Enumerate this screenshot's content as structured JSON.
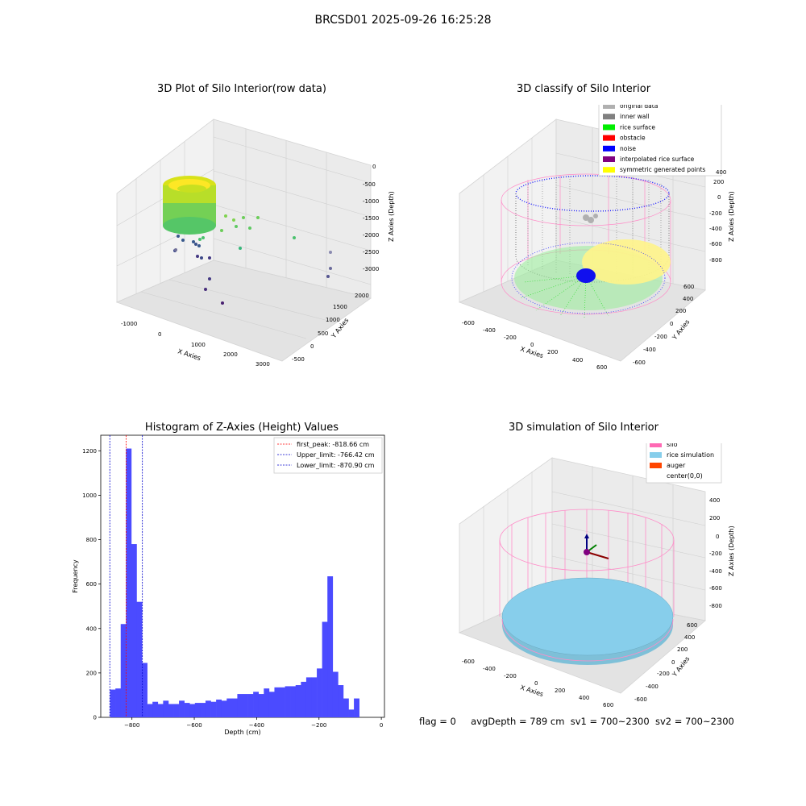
{
  "figure": {
    "suptitle": "BRCSD01 2025-09-26 16:25:28",
    "footer": {
      "flag": "flag = 0",
      "avg_depth": "avgDepth = 789 cm",
      "sv1": "sv1 = 700~2300",
      "sv2": "sv2 = 700~2300"
    }
  },
  "chart_data": [
    {
      "type": "scatter",
      "title": "3D Plot of Silo Interior(row data)",
      "xlabel": "X Axies",
      "ylabel": "Y Axies",
      "zlabel": "Z Axies (Depth)",
      "x_ticks": [
        "-1000",
        "0",
        "1000",
        "2000",
        "3000"
      ],
      "y_ticks": [
        "-500",
        "0",
        "500",
        "1000",
        "1500",
        "2000"
      ],
      "z_ticks": [
        "0",
        "-500",
        "-1000",
        "-1500",
        "-2000",
        "-2500",
        "-3000"
      ],
      "xlim": [
        -1300,
        3500
      ],
      "ylim": [
        -700,
        2200
      ],
      "zlim": [
        -3300,
        100
      ],
      "grid": true,
      "colormap": "viridis"
    },
    {
      "type": "scatter",
      "title": "3D classify of Silo Interior",
      "xlabel": "X Axies",
      "ylabel": "Y Axies",
      "zlabel": "Z Axies (Depth)",
      "x_ticks": [
        "-600",
        "-400",
        "-200",
        "0",
        "200",
        "400",
        "600"
      ],
      "y_ticks": [
        "-600",
        "-400",
        "-200",
        "0",
        "200",
        "400",
        "600"
      ],
      "z_ticks": [
        "200",
        "0",
        "-200",
        "-400",
        "-600",
        "-800"
      ],
      "z_top_tick": "400",
      "grid": true,
      "legend_position": "top-right",
      "legend": [
        {
          "label": "original data",
          "color": "#b0b0b0"
        },
        {
          "label": "inner wall",
          "color": "#808080"
        },
        {
          "label": "rice surface",
          "color": "#00ee00"
        },
        {
          "label": "obstacle",
          "color": "#ff0000"
        },
        {
          "label": "noise",
          "color": "#0000ff"
        },
        {
          "label": "interpolated rice surface",
          "color": "#800080"
        },
        {
          "label": "symmetric generated points",
          "color": "#ffff00"
        }
      ]
    },
    {
      "type": "bar",
      "title": "Histogram of Z-Axies (Height) Values",
      "xlabel": "Depth (cm)",
      "ylabel": "Frequency",
      "xlim": [
        -900,
        10
      ],
      "ylim": [
        0,
        1270
      ],
      "x_ticks": [
        -800,
        -600,
        -400,
        -200,
        0
      ],
      "y_ticks": [
        0,
        200,
        400,
        600,
        800,
        1000,
        1200
      ],
      "bar_color": "#4b4bff",
      "bin_edges_start": -870,
      "bin_width": 17,
      "values": [
        125,
        130,
        420,
        1210,
        780,
        520,
        245,
        60,
        70,
        60,
        75,
        60,
        60,
        75,
        65,
        60,
        65,
        65,
        75,
        70,
        80,
        75,
        85,
        85,
        105,
        105,
        105,
        115,
        105,
        130,
        115,
        135,
        135,
        140,
        140,
        145,
        160,
        180,
        180,
        220,
        430,
        635,
        205,
        145,
        85,
        35,
        85
      ],
      "vlines": [
        {
          "label": "first_peak: -818.66 cm",
          "x": -818.66,
          "color": "#ff0000"
        },
        {
          "label": "Upper_limit: -766.42 cm",
          "x": -766.42,
          "color": "#0000cc"
        },
        {
          "label": "Lower_limit: -870.90 cm",
          "x": -870.9,
          "color": "#0000cc"
        }
      ],
      "legend_position": "top-right"
    },
    {
      "type": "scatter",
      "title": "3D simulation of Silo Interior",
      "xlabel": "X Axies",
      "ylabel": "Y Axies",
      "zlabel": "Z Axies (Depth)",
      "x_ticks": [
        "-600",
        "-400",
        "-200",
        "0",
        "200",
        "400",
        "600"
      ],
      "y_ticks": [
        "-600",
        "-400",
        "-200",
        "0",
        "200",
        "400",
        "600"
      ],
      "z_ticks": [
        "400",
        "200",
        "0",
        "-200",
        "-400",
        "-600",
        "-800"
      ],
      "grid": true,
      "legend_position": "top-right",
      "legend": [
        {
          "label": "silo",
          "color": "#ff69b4"
        },
        {
          "label": "rice simulation",
          "color": "#87ceeb"
        },
        {
          "label": "auger",
          "color": "#ff4500"
        },
        {
          "label": "center(0,0)",
          "color": "#ffffff"
        }
      ]
    }
  ]
}
